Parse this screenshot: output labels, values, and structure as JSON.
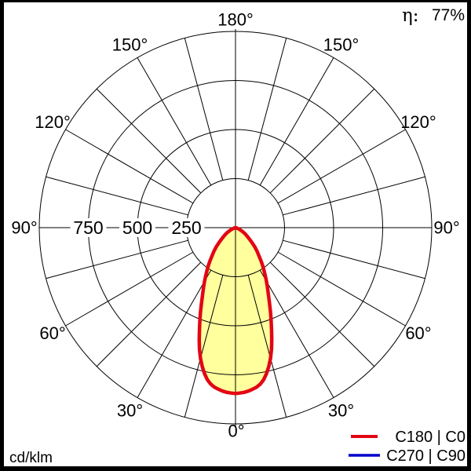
{
  "header": {
    "efficiency_label": "η:",
    "efficiency_value": "77%"
  },
  "footer": {
    "unit_label": "cd/klm"
  },
  "legend": {
    "items": [
      {
        "label": "C180 | C0",
        "color": "#e30613"
      },
      {
        "label": "C270 | C90",
        "color": "#0000cc"
      }
    ]
  },
  "axis": {
    "radial_labels": [
      {
        "value": 750,
        "label": "750"
      },
      {
        "value": 500,
        "label": "500"
      },
      {
        "value": 250,
        "label": "250"
      }
    ],
    "angle_labels": [
      {
        "value": 0,
        "label": "0°"
      },
      {
        "value": 30,
        "label": "30°"
      },
      {
        "value": 60,
        "label": "60°"
      },
      {
        "value": 90,
        "label": "90°"
      },
      {
        "value": 120,
        "label": "120°"
      },
      {
        "value": 150,
        "label": "150°"
      },
      {
        "value": 180,
        "label": "180°"
      }
    ]
  },
  "chart_data": {
    "type": "line",
    "subtype": "polar-luminous-intensity",
    "units": "cd/klm",
    "orientation": "0° at bottom (nadir), 180° at top, symmetric left/right",
    "angle_grid_step_deg": 15,
    "angle_label_step_deg": 30,
    "radial_ticks": [
      250,
      500,
      750,
      1000
    ],
    "radial_max": 1000,
    "angles_deg": [
      0,
      5,
      10,
      15,
      20,
      25,
      30,
      35,
      40,
      45,
      50,
      55,
      60,
      65,
      70,
      75,
      80,
      85,
      90
    ],
    "series": [
      {
        "name": "C180 | C0",
        "color": "#e30613",
        "stroke_width": 4.5,
        "fill": "#ffff9e",
        "values": [
          845,
          833,
          795,
          690,
          535,
          405,
          315,
          245,
          185,
          140,
          95,
          68,
          45,
          25,
          12,
          5,
          2,
          0,
          0
        ]
      },
      {
        "name": "C270 | C90",
        "color": "#0000cc",
        "stroke_width": 3,
        "fill": "none",
        "values": [
          845,
          833,
          795,
          690,
          535,
          405,
          315,
          245,
          185,
          140,
          95,
          68,
          45,
          25,
          12,
          5,
          2,
          0,
          0
        ]
      }
    ],
    "efficiency_eta_percent": 77,
    "grid": true,
    "legend_position": "bottom-right"
  }
}
